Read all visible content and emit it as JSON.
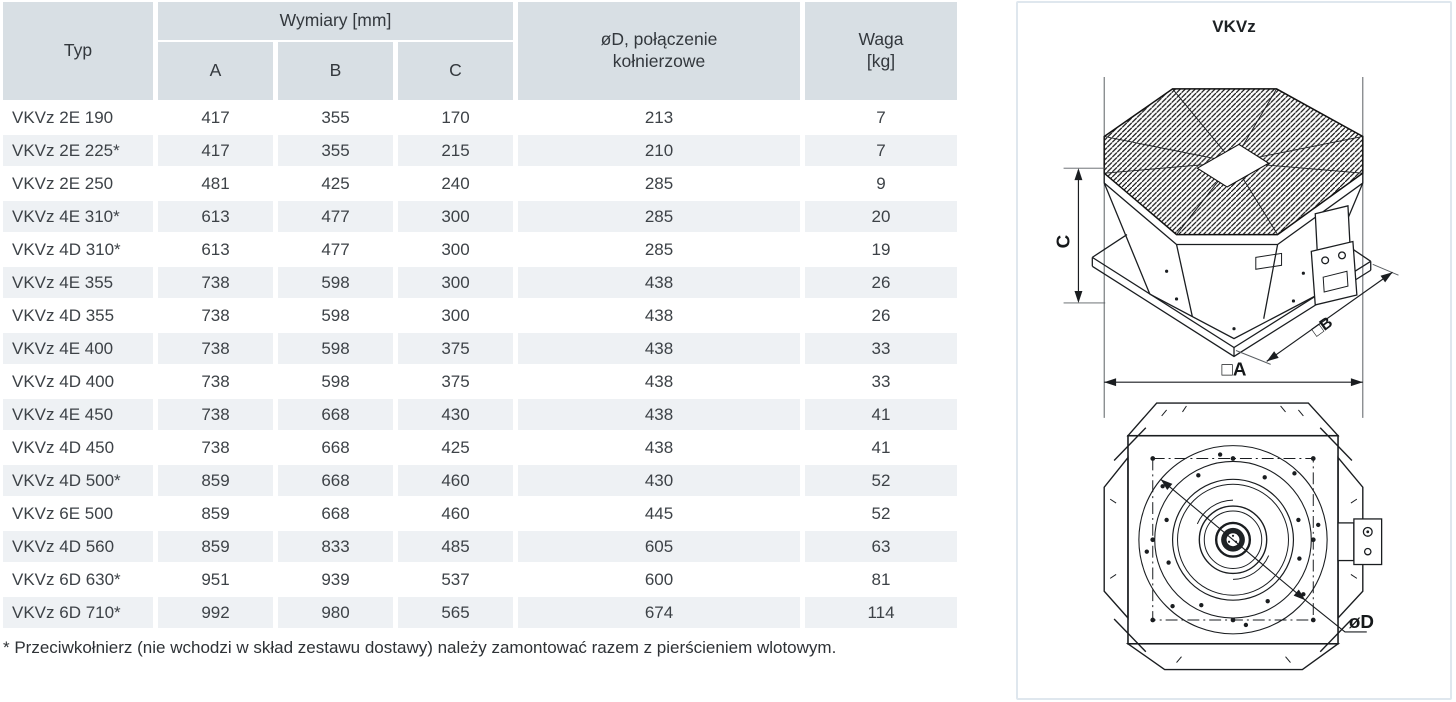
{
  "table": {
    "headers": {
      "typ": "Typ",
      "wymiary": "Wymiary [mm]",
      "a": "A",
      "b": "B",
      "c": "C",
      "od_line1": "øD, połączenie",
      "od_line2": "kołnierzowe",
      "waga_line1": "Waga",
      "waga_line2": "[kg]"
    },
    "rows": [
      {
        "typ": "VKVz 2E 190",
        "a": 417,
        "b": 355,
        "c": 170,
        "od": 213,
        "waga": 7
      },
      {
        "typ": "VKVz 2E 225*",
        "a": 417,
        "b": 355,
        "c": 215,
        "od": 210,
        "waga": 7
      },
      {
        "typ": "VKVz 2E 250",
        "a": 481,
        "b": 425,
        "c": 240,
        "od": 285,
        "waga": 9
      },
      {
        "typ": "VKVz 4E 310*",
        "a": 613,
        "b": 477,
        "c": 300,
        "od": 285,
        "waga": 20
      },
      {
        "typ": "VKVz 4D 310*",
        "a": 613,
        "b": 477,
        "c": 300,
        "od": 285,
        "waga": 19
      },
      {
        "typ": "VKVz 4E 355",
        "a": 738,
        "b": 598,
        "c": 300,
        "od": 438,
        "waga": 26
      },
      {
        "typ": "VKVz 4D 355",
        "a": 738,
        "b": 598,
        "c": 300,
        "od": 438,
        "waga": 26
      },
      {
        "typ": "VKVz 4E 400",
        "a": 738,
        "b": 598,
        "c": 375,
        "od": 438,
        "waga": 33
      },
      {
        "typ": "VKVz 4D 400",
        "a": 738,
        "b": 598,
        "c": 375,
        "od": 438,
        "waga": 33
      },
      {
        "typ": "VKVz 4E 450",
        "a": 738,
        "b": 668,
        "c": 430,
        "od": 438,
        "waga": 41
      },
      {
        "typ": "VKVz 4D 450",
        "a": 738,
        "b": 668,
        "c": 425,
        "od": 438,
        "waga": 41
      },
      {
        "typ": "VKVz 4D 500*",
        "a": 859,
        "b": 668,
        "c": 460,
        "od": 430,
        "waga": 52
      },
      {
        "typ": "VKVz 6E 500",
        "a": 859,
        "b": 668,
        "c": 460,
        "od": 445,
        "waga": 52
      },
      {
        "typ": "VKVz 4D 560",
        "a": 859,
        "b": 833,
        "c": 485,
        "od": 605,
        "waga": 63
      },
      {
        "typ": "VKVz 6D 630*",
        "a": 951,
        "b": 939,
        "c": 537,
        "od": 600,
        "waga": 81
      },
      {
        "typ": "VKVz 6D 710*",
        "a": 992,
        "b": 980,
        "c": 565,
        "od": 674,
        "waga": 114
      }
    ]
  },
  "footnote": "* Przeciwkołnierz (nie wchodzi w skład zestawu dostawy) należy zamontować razem z pierścieniem wlotowym.",
  "panel": {
    "title": "VKVz",
    "dims": {
      "c": "C",
      "b": "□B",
      "a": "□A",
      "d": "øD"
    }
  },
  "colors": {
    "header_bg": "#d8dfe4",
    "stripe_bg": "#eef1f4",
    "text": "#3d4247",
    "panel_border": "#dfe7ee"
  }
}
